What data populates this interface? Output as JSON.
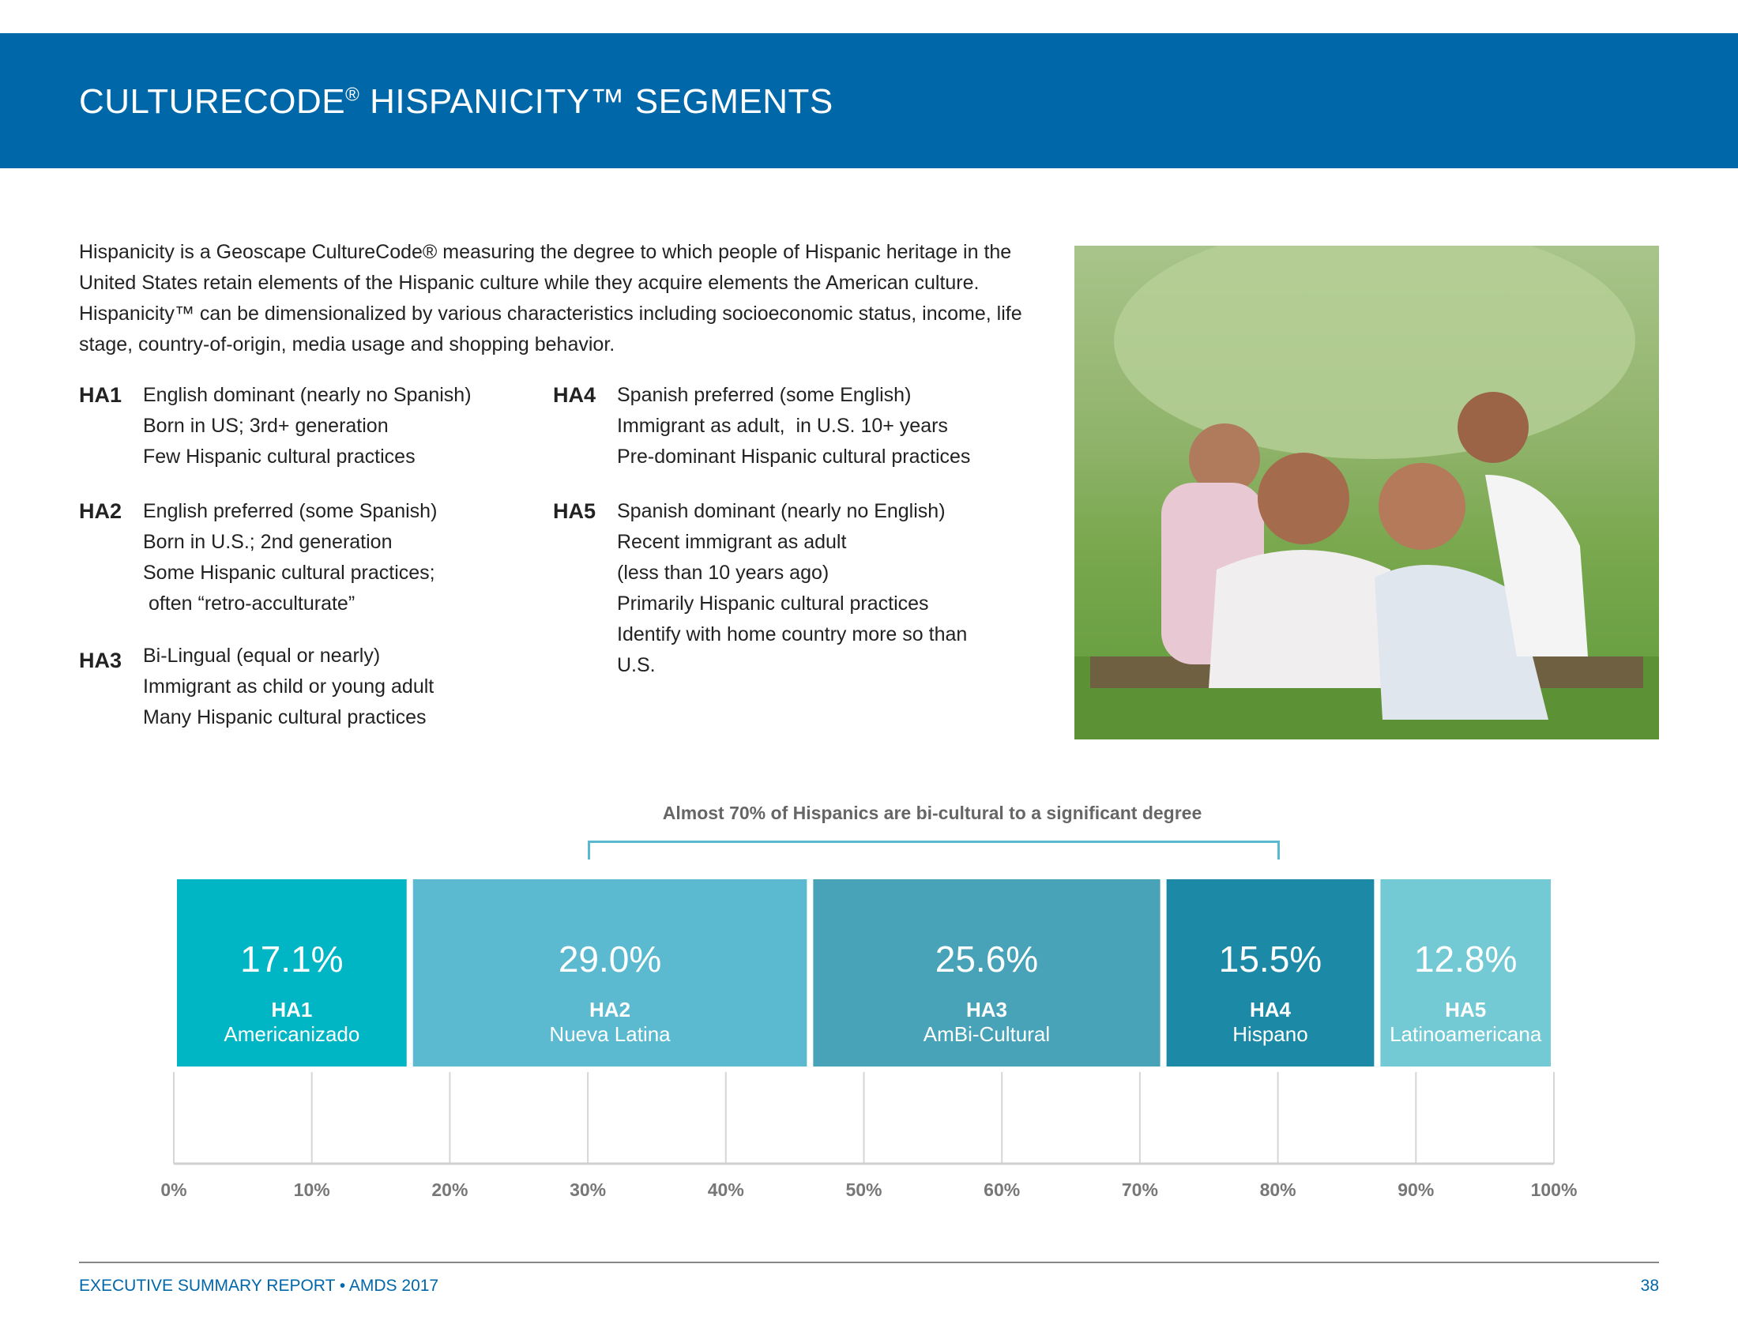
{
  "header": {
    "title_part1": "CULTURECODE",
    "title_reg": "®",
    "title_part2": " HISPANICITY™ SEGMENTS"
  },
  "intro": "Hispanicity is a Geoscape CultureCode® measuring the degree to which people of Hispanic heritage in the United States retain elements of the Hispanic culture while they acquire elements the American culture. Hispanicity™ can be dimensionalized by various characteristics including socioeconomic status, income, life stage, country-of-origin, media usage and shopping behavior.",
  "segments": [
    {
      "code": "HA1",
      "lines": "English dominant (nearly no Spanish)\nBorn in US; 3rd+ generation\nFew Hispanic cultural practices"
    },
    {
      "code": "HA2",
      "lines": "English preferred (some Spanish)\nBorn in U.S.; 2nd generation\nSome Hispanic cultural practices;\n often “retro-acculturate”"
    },
    {
      "code": "HA3",
      "lines": "Bi-Lingual (equal or nearly)\nImmigrant as child or young adult\nMany Hispanic cultural practices"
    },
    {
      "code": "HA4",
      "lines": "Spanish preferred (some English)\nImmigrant as adult,  in U.S. 10+ years\nPre-dominant Hispanic cultural practices"
    },
    {
      "code": "HA5",
      "lines": "Spanish dominant (nearly no English)\nRecent immigrant as adult\n(less than 10 years ago)\nPrimarily Hispanic cultural practices\nIdentify with home country more so than\nU.S."
    }
  ],
  "chart_data": {
    "type": "bar",
    "orientation": "stacked-horizontal",
    "title": "Almost 70% of Hispanics are bi-cultural to a significant degree",
    "annotation_range": [
      30,
      80
    ],
    "categories": [
      "HA1",
      "HA2",
      "HA3",
      "HA4",
      "HA5"
    ],
    "names": [
      "Americanizado",
      "Nueva Latina",
      "AmBi-Cultural",
      "Hispano",
      "Latinoamericana"
    ],
    "values": [
      17.1,
      29.0,
      25.6,
      15.5,
      12.8
    ],
    "value_labels": [
      "17.1%",
      "29.0%",
      "25.6%",
      "15.5%",
      "12.8%"
    ],
    "colors": [
      "#00b6c4",
      "#5bbacf",
      "#48a3b8",
      "#1c89a6",
      "#74cad4"
    ],
    "xlim": [
      0,
      100
    ],
    "ticks": [
      "0%",
      "10%",
      "20%",
      "30%",
      "40%",
      "50%",
      "60%",
      "70%",
      "80%",
      "90%",
      "100%"
    ],
    "grid": true
  },
  "footer": {
    "left": "EXECUTIVE SUMMARY REPORT  •  AMDS 2017",
    "page": "38"
  }
}
